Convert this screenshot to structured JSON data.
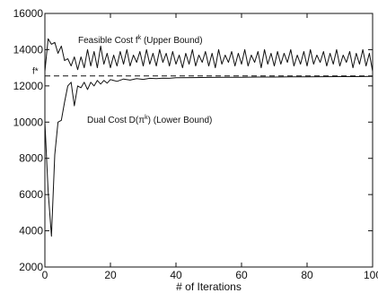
{
  "chart_data": {
    "type": "line",
    "title": "",
    "xlabel": "# of Iterations",
    "ylabel": "",
    "xlim": [
      0,
      100
    ],
    "ylim": [
      2000,
      16000
    ],
    "grid": false,
    "x_ticks": [
      0,
      20,
      40,
      60,
      80,
      100
    ],
    "y_ticks": [
      2000,
      4000,
      6000,
      8000,
      10000,
      12000,
      14000,
      16000
    ],
    "reference_line": {
      "label": "f*",
      "y": 12550,
      "style": "dashed"
    },
    "annotations": [
      {
        "text": "Feasible Cost f",
        "sup": "k",
        "tail": " (Upper Bound)"
      },
      {
        "text": "Dual Cost D(π",
        "sup": "k",
        "tail": ") (Lower Bound)"
      }
    ],
    "series": [
      {
        "name": "Feasible Cost f^k (Upper Bound)",
        "style": "solid",
        "x": [
          0,
          1,
          2,
          3,
          4,
          5,
          6,
          7,
          8,
          9,
          10,
          11,
          12,
          13,
          14,
          15,
          16,
          17,
          18,
          19,
          20,
          21,
          22,
          23,
          24,
          25,
          26,
          27,
          28,
          29,
          30,
          31,
          32,
          33,
          34,
          35,
          36,
          37,
          38,
          39,
          40,
          41,
          42,
          43,
          44,
          45,
          46,
          47,
          48,
          49,
          50,
          51,
          52,
          53,
          54,
          55,
          56,
          57,
          58,
          59,
          60,
          61,
          62,
          63,
          64,
          65,
          66,
          67,
          68,
          69,
          70,
          71,
          72,
          73,
          74,
          75,
          76,
          77,
          78,
          79,
          80,
          81,
          82,
          83,
          84,
          85,
          86,
          87,
          88,
          89,
          90,
          91,
          92,
          93,
          94,
          95,
          96,
          97,
          98,
          99,
          100
        ],
        "values": [
          12800,
          14600,
          14300,
          14400,
          13800,
          14200,
          13400,
          13500,
          13100,
          13600,
          12900,
          13600,
          13000,
          14000,
          13100,
          13900,
          13000,
          14200,
          13200,
          13800,
          13000,
          13700,
          13100,
          13900,
          13200,
          14000,
          13100,
          13700,
          13300,
          13900,
          13100,
          14000,
          13200,
          13800,
          13100,
          14000,
          13300,
          13800,
          13100,
          13900,
          13200,
          13700,
          13000,
          13800,
          13200,
          14000,
          13100,
          13700,
          13300,
          13900,
          13100,
          13800,
          13000,
          14000,
          13200,
          13700,
          13300,
          13900,
          13100,
          13800,
          13200,
          14000,
          13100,
          13700,
          13300,
          13900,
          13000,
          14000,
          13200,
          13800,
          13100,
          13900,
          13200,
          13800,
          13300,
          14000,
          13100,
          13700,
          13200,
          13900,
          13100,
          14000,
          13200,
          13700,
          13300,
          13900,
          13100,
          13800,
          13200,
          14000,
          13100,
          13700,
          13300,
          13900,
          13000,
          13800,
          13200,
          14000,
          13100,
          13800,
          12800
        ]
      },
      {
        "name": "Dual Cost D(π^k) (Lower Bound)",
        "style": "solid",
        "x": [
          0,
          1,
          2,
          3,
          4,
          5,
          6,
          7,
          8,
          9,
          10,
          11,
          12,
          13,
          14,
          15,
          16,
          17,
          18,
          19,
          20,
          22,
          24,
          26,
          28,
          30,
          32,
          34,
          36,
          38,
          40,
          45,
          50,
          55,
          60,
          65,
          70,
          75,
          80,
          85,
          90,
          95,
          100
        ],
        "values": [
          10000,
          6200,
          3700,
          8200,
          10000,
          10100,
          11100,
          12000,
          12200,
          10900,
          12000,
          11900,
          12200,
          11800,
          12200,
          12000,
          12300,
          12100,
          12300,
          12150,
          12350,
          12250,
          12380,
          12320,
          12400,
          12360,
          12420,
          12400,
          12430,
          12420,
          12450,
          12460,
          12470,
          12480,
          12480,
          12490,
          12490,
          12500,
          12500,
          12505,
          12510,
          12510,
          12520
        ]
      }
    ]
  }
}
